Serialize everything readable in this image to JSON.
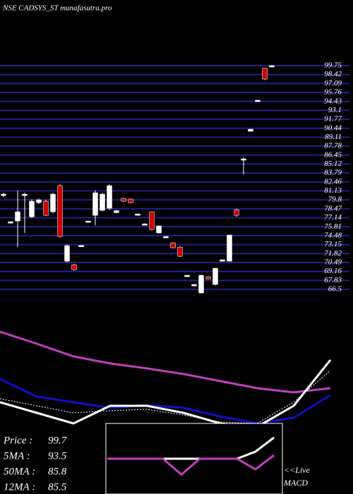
{
  "chart_data": [
    {
      "type": "candlestick",
      "title": "NSE CADSYS_ST munafasutra.pro",
      "up_color": "#ffffff",
      "down_color": "#cc0000",
      "grid": true,
      "grid_color": "#22228a",
      "ylim": [
        66.5,
        99.75
      ],
      "yticks": [
        99.75,
        98.42,
        97.09,
        95.76,
        94.43,
        93.1,
        91.77,
        90.44,
        89.11,
        87.78,
        86.45,
        85.12,
        83.79,
        82.46,
        81.13,
        79.8,
        78.47,
        77.14,
        75.81,
        74.48,
        73.15,
        71.82,
        70.49,
        69.16,
        67.83,
        66.5
      ],
      "candles": [
        {
          "open": 80.44,
          "high": 80.86,
          "low": 80.23,
          "close": 80.65
        },
        {
          "open": 76.45,
          "high": 76.66,
          "low": 76.24,
          "close": 76.55
        },
        {
          "open": 76.66,
          "high": 81.18,
          "low": 72.78,
          "close": 78.03
        },
        {
          "open": 80.44,
          "high": 80.86,
          "low": 74.88,
          "close": 80.65
        },
        {
          "open": 77.29,
          "high": 79.9,
          "low": 77.1,
          "close": 79.6
        },
        {
          "open": 79.4,
          "high": 80.0,
          "low": 79.2,
          "close": 79.8
        },
        {
          "open": 79.6,
          "high": 79.8,
          "low": 77.4,
          "close": 77.5
        },
        {
          "open": 78.03,
          "high": 80.86,
          "low": 77.8,
          "close": 80.65
        },
        {
          "open": 81.91,
          "high": 82.1,
          "low": 74.2,
          "close": 74.36
        },
        {
          "open": 70.68,
          "high": 73.2,
          "low": 70.5,
          "close": 72.99
        },
        {
          "open": 70.16,
          "high": 70.3,
          "low": 69.3,
          "close": 69.42
        },
        {
          "open": 72.95,
          "high": 73.05,
          "low": 72.9,
          "close": 73.03
        },
        {
          "open": 76.62,
          "high": 76.7,
          "low": 76.6,
          "close": 76.66
        },
        {
          "open": 77.5,
          "high": 81.2,
          "low": 76.0,
          "close": 80.86
        },
        {
          "open": 78.24,
          "high": 80.86,
          "low": 78.1,
          "close": 80.65
        },
        {
          "open": 78.55,
          "high": 82.1,
          "low": 78.3,
          "close": 81.91
        },
        {
          "open": 77.9,
          "high": 78.3,
          "low": 77.8,
          "close": 78.2
        },
        {
          "open": 80.02,
          "high": 80.1,
          "low": 79.5,
          "close": 79.6
        },
        {
          "open": 79.92,
          "high": 80.0,
          "low": 79.3,
          "close": 79.39
        },
        {
          "open": 77.68,
          "high": 77.75,
          "low": 77.65,
          "close": 77.71
        },
        {
          "open": 76.2,
          "high": 76.3,
          "low": 76.15,
          "close": 76.24
        },
        {
          "open": 78.03,
          "high": 78.1,
          "low": 75.3,
          "close": 75.4
        },
        {
          "open": 74.88,
          "high": 76.0,
          "low": 74.8,
          "close": 75.93
        },
        {
          "open": 74.33,
          "high": 74.4,
          "low": 74.3,
          "close": 74.36
        },
        {
          "open": 73.41,
          "high": 73.5,
          "low": 72.6,
          "close": 72.68
        },
        {
          "open": 72.78,
          "high": 72.9,
          "low": 71.3,
          "close": 71.42
        },
        {
          "open": 68.55,
          "high": 68.65,
          "low": 68.5,
          "close": 68.59
        },
        {
          "open": 67.18,
          "high": 67.3,
          "low": 67.1,
          "close": 67.22
        },
        {
          "open": 65.96,
          "high": 68.7,
          "low": 65.9,
          "close": 68.59
        },
        {
          "open": 68.37,
          "high": 68.45,
          "low": 68.0,
          "close": 68.06
        },
        {
          "open": 67.22,
          "high": 69.7,
          "low": 67.1,
          "close": 69.63
        },
        {
          "open": 70.85,
          "high": 70.95,
          "low": 70.8,
          "close": 70.89
        },
        {
          "open": 70.68,
          "high": 74.6,
          "low": 70.6,
          "close": 74.57
        },
        {
          "open": 78.34,
          "high": 78.5,
          "low": 77.3,
          "close": 77.5
        },
        {
          "open": 85.7,
          "high": 86.1,
          "low": 83.59,
          "close": 85.9
        },
        {
          "open": 89.99,
          "high": 90.35,
          "low": 89.95,
          "close": 90.3
        },
        {
          "open": 94.58,
          "high": 94.65,
          "low": 94.55,
          "close": 94.61
        },
        {
          "open": 99.4,
          "high": 99.4,
          "low": 97.6,
          "close": 97.76
        },
        {
          "open": 99.55,
          "high": 99.8,
          "low": 99.5,
          "close": 99.75
        }
      ]
    },
    {
      "type": "line",
      "x": [
        0,
        52,
        104,
        156,
        208,
        260,
        312,
        364,
        416,
        468
      ],
      "xlim": [
        0,
        500
      ],
      "ylim": [
        0,
        145
      ],
      "series": [
        {
          "color": "#c040c0",
          "values": [
            140,
            123,
            105,
            95,
            88,
            80,
            70,
            60,
            54,
            60
          ]
        },
        {
          "color": "#1010c8",
          "values": [
            73,
            48,
            40,
            32,
            36,
            32,
            20,
            10,
            18,
            50
          ]
        },
        {
          "color": "#ffffff",
          "values": [
            40,
            25,
            10,
            35,
            35,
            25,
            10,
            5,
            35,
            100
          ]
        },
        {
          "color": "#ffffff",
          "dash": true,
          "values": [
            45,
            35,
            25,
            28,
            30,
            22,
            12,
            10,
            40,
            85
          ]
        }
      ]
    },
    {
      "type": "line",
      "x": [
        0,
        1,
        2,
        3,
        4,
        5,
        6,
        7,
        8,
        9
      ],
      "xlim": [
        0,
        9
      ],
      "ylim": [
        -20,
        20
      ],
      "series": [
        {
          "color": "#ffffff",
          "values": [
            0,
            0,
            0,
            0,
            0,
            0,
            0,
            0,
            4,
            12
          ]
        },
        {
          "color": "#c040c0",
          "values": [
            0,
            0,
            0,
            0,
            -9,
            0,
            0,
            0,
            -6,
            2
          ]
        }
      ]
    }
  ],
  "stats": [
    {
      "label": "Price :",
      "value": 99.7
    },
    {
      "label": "5MA : ",
      "value": 93.5
    },
    {
      "label": "50MA :",
      "value": 85.8
    },
    {
      "label": "12MA :",
      "value": 85.5
    }
  ],
  "live_label": "<<Live",
  "macd_label": "MACD"
}
